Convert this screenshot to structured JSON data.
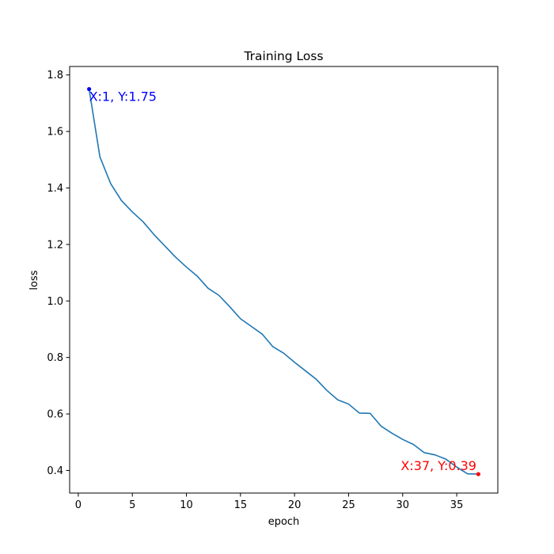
{
  "chart_data": {
    "type": "line",
    "title": "Training Loss",
    "xlabel": "epoch",
    "ylabel": "loss",
    "xlim": [
      -0.8,
      38.8
    ],
    "ylim": [
      0.32,
      1.83
    ],
    "xticks": [
      0,
      5,
      10,
      15,
      20,
      25,
      30,
      35
    ],
    "yticks": [
      0.4,
      0.6,
      0.8,
      1.0,
      1.2,
      1.4,
      1.6,
      1.8
    ],
    "ytick_labels": [
      "0.4",
      "0.6",
      "0.8",
      "1.0",
      "1.2",
      "1.4",
      "1.6",
      "1.8"
    ],
    "grid": false,
    "series": [
      {
        "color": "#1f77b4",
        "x": [
          1,
          2,
          3,
          4,
          5,
          6,
          7,
          8,
          9,
          10,
          11,
          12,
          13,
          14,
          15,
          16,
          17,
          18,
          19,
          20,
          21,
          22,
          23,
          24,
          25,
          26,
          27,
          28,
          29,
          30,
          31,
          32,
          33,
          34,
          35,
          36,
          37
        ],
        "y": [
          1.75,
          1.51,
          1.415,
          1.355,
          1.315,
          1.28,
          1.235,
          1.195,
          1.155,
          1.12,
          1.088,
          1.045,
          1.02,
          0.98,
          0.937,
          0.91,
          0.883,
          0.838,
          0.815,
          0.783,
          0.753,
          0.723,
          0.683,
          0.65,
          0.635,
          0.603,
          0.602,
          0.557,
          0.532,
          0.51,
          0.492,
          0.463,
          0.455,
          0.44,
          0.412,
          0.388,
          0.387
        ]
      }
    ],
    "annotations": [
      {
        "x": 1,
        "y": 1.75,
        "text": "X:1, Y:1.75",
        "color": "#0000ff"
      },
      {
        "x": 37,
        "y": 0.387,
        "text": "X:37, Y:0.39",
        "color": "#ff0000"
      }
    ]
  }
}
